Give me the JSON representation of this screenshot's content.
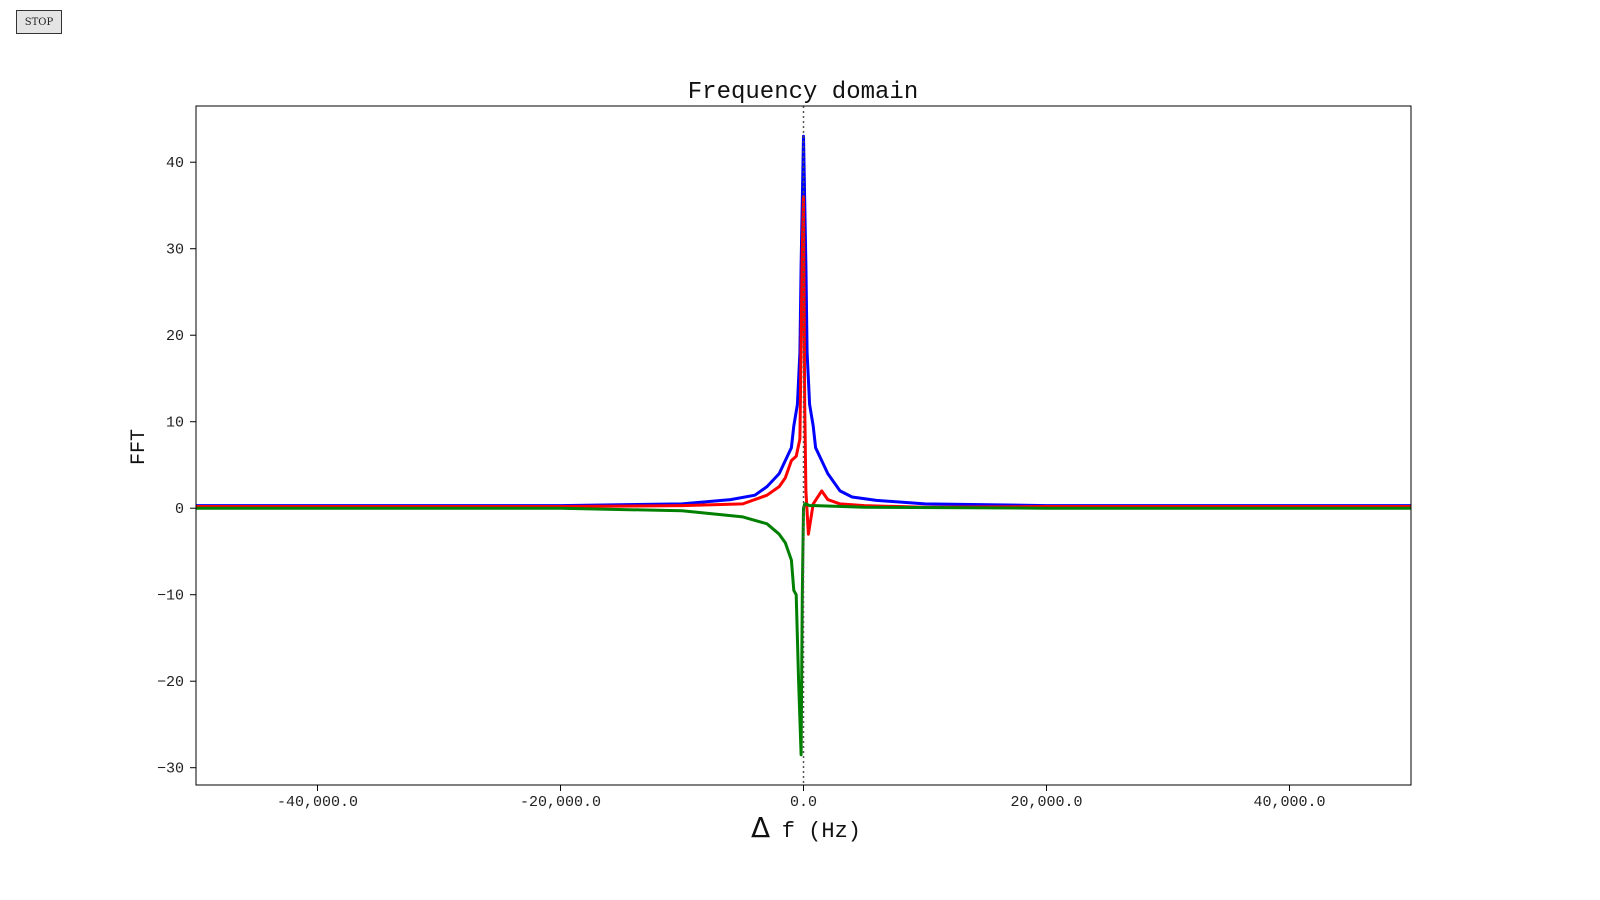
{
  "toolbar": {
    "stop_label": "STOP"
  },
  "chart_data": {
    "type": "line",
    "title": "Frequency domain",
    "xlabel_symbol": "Δ",
    "xlabel_rest": "f (Hz)",
    "ylabel": "FFT",
    "xlim": [
      -50000,
      50000
    ],
    "ylim": [
      -32,
      46.5
    ],
    "xticks": [
      -40000,
      -20000,
      0,
      20000,
      40000
    ],
    "xtick_labels": [
      "-40,000.0",
      "-20,000.0",
      "0.0",
      "20,000.0",
      "40,000.0"
    ],
    "yticks": [
      -30,
      -20,
      -10,
      0,
      10,
      20,
      30,
      40
    ],
    "ytick_labels": [
      "−30",
      "−20",
      "−10",
      "0",
      "10",
      "20",
      "30",
      "40"
    ],
    "grid": false,
    "legend": false,
    "reference_line": {
      "x": 0,
      "style": "dotted",
      "color": "#555555"
    },
    "series": [
      {
        "color": "#0000ff",
        "x": [
          -50000,
          -30000,
          -20000,
          -10000,
          -6000,
          -4000,
          -3000,
          -2000,
          -1500,
          -1000,
          -800,
          -500,
          -300,
          -200,
          0,
          200,
          300,
          500,
          800,
          1000,
          1500,
          2000,
          3000,
          4000,
          6000,
          10000,
          20000,
          30000,
          50000
        ],
        "y": [
          0.3,
          0.3,
          0.3,
          0.5,
          1.0,
          1.5,
          2.5,
          4.0,
          5.5,
          7.0,
          9.5,
          12.0,
          18.0,
          28.0,
          43.0,
          28.0,
          18.0,
          12.0,
          9.5,
          7.0,
          5.5,
          4.0,
          2.0,
          1.3,
          0.9,
          0.5,
          0.3,
          0.3,
          0.3
        ]
      },
      {
        "color": "#ff0000",
        "x": [
          -50000,
          -20000,
          -10000,
          -5000,
          -3000,
          -2000,
          -1500,
          -1000,
          -600,
          -300,
          -100,
          0,
          100,
          200,
          400,
          800,
          1500,
          2000,
          3000,
          5000,
          10000,
          20000,
          50000
        ],
        "y": [
          0.2,
          0.2,
          0.3,
          0.5,
          1.5,
          2.5,
          3.5,
          5.5,
          6.0,
          8.0,
          30.0,
          36.0,
          12.0,
          2.0,
          -3.0,
          0.5,
          2.0,
          1.0,
          0.5,
          0.3,
          0.1,
          0.2,
          0.2
        ]
      },
      {
        "color": "#008000",
        "x": [
          -50000,
          -20000,
          -10000,
          -5000,
          -3000,
          -2000,
          -1500,
          -1000,
          -800,
          -600,
          -400,
          -200,
          -100,
          0,
          100,
          200,
          500,
          1000,
          5000,
          20000,
          50000
        ],
        "y": [
          0.0,
          0.0,
          -0.3,
          -1.0,
          -1.8,
          -3.0,
          -4.0,
          -6.0,
          -9.5,
          -10.0,
          -20.0,
          -28.5,
          -10.0,
          0.0,
          0.5,
          0.5,
          0.3,
          0.3,
          0.1,
          0.0,
          0.0
        ]
      }
    ]
  }
}
